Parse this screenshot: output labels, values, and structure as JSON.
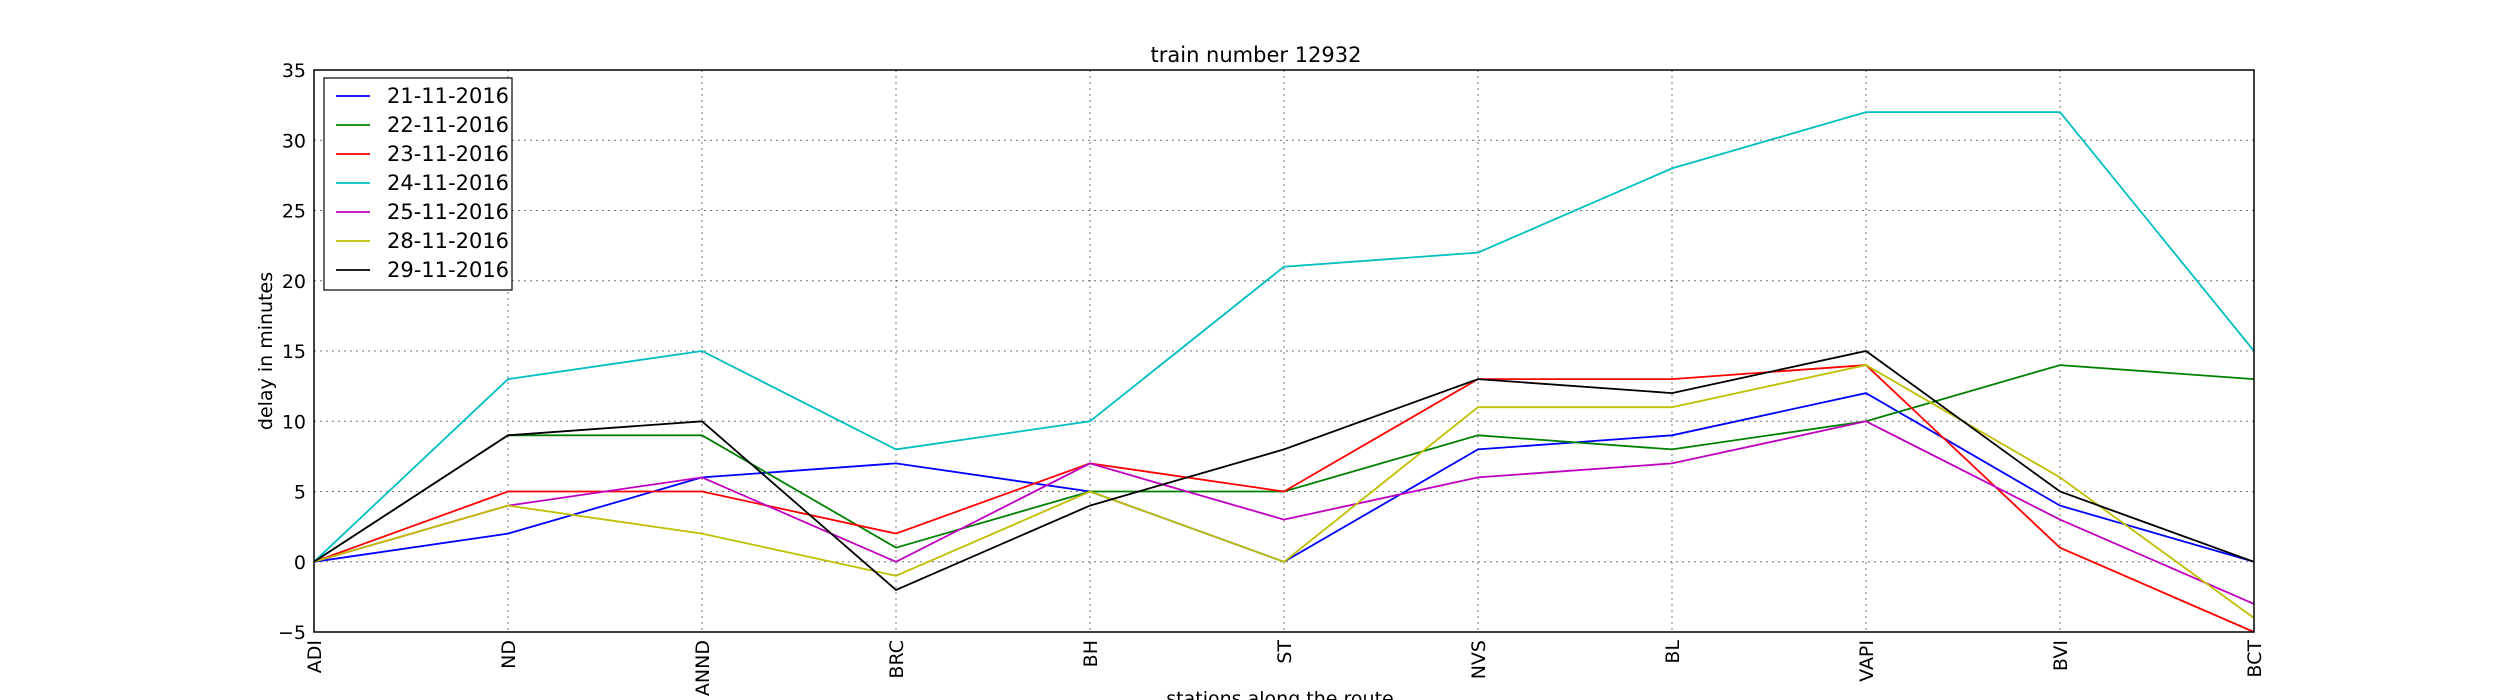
{
  "chart_data": {
    "type": "line",
    "title": "train number 12932",
    "xlabel": "stations along the route",
    "ylabel": "delay in minutes",
    "categories": [
      "ADI",
      "ND",
      "ANND",
      "BRC",
      "BH",
      "ST",
      "NVS",
      "BL",
      "VAPI",
      "BVI",
      "BCT"
    ],
    "ylim": [
      -5,
      35
    ],
    "yticks": [
      -5,
      0,
      5,
      10,
      15,
      20,
      25,
      30,
      35
    ],
    "grid": true,
    "legend_position": "top-left",
    "series": [
      {
        "name": "21-11-2016",
        "color": "#0000ff",
        "values": [
          0,
          2,
          6,
          7,
          5,
          0,
          8,
          9,
          12,
          4,
          0
        ]
      },
      {
        "name": "22-11-2016",
        "color": "#008000",
        "values": [
          0,
          9,
          9,
          1,
          5,
          5,
          9,
          8,
          10,
          14,
          13
        ]
      },
      {
        "name": "23-11-2016",
        "color": "#ff0000",
        "values": [
          0,
          5,
          5,
          2,
          7,
          5,
          13,
          13,
          14,
          1,
          -5
        ]
      },
      {
        "name": "24-11-2016",
        "color": "#00bfbf",
        "values": [
          0,
          13,
          15,
          8,
          10,
          21,
          22,
          28,
          32,
          32,
          15
        ]
      },
      {
        "name": "25-11-2016",
        "color": "#bf00bf",
        "values": [
          0,
          4,
          6,
          0,
          7,
          3,
          6,
          7,
          10,
          3,
          -3
        ]
      },
      {
        "name": "28-11-2016",
        "color": "#bfbf00",
        "values": [
          0,
          4,
          2,
          -1,
          5,
          0,
          11,
          11,
          14,
          6,
          -4
        ]
      },
      {
        "name": "29-11-2016",
        "color": "#000000",
        "values": [
          0,
          9,
          10,
          -2,
          4,
          8,
          13,
          12,
          15,
          5,
          0
        ]
      }
    ]
  }
}
